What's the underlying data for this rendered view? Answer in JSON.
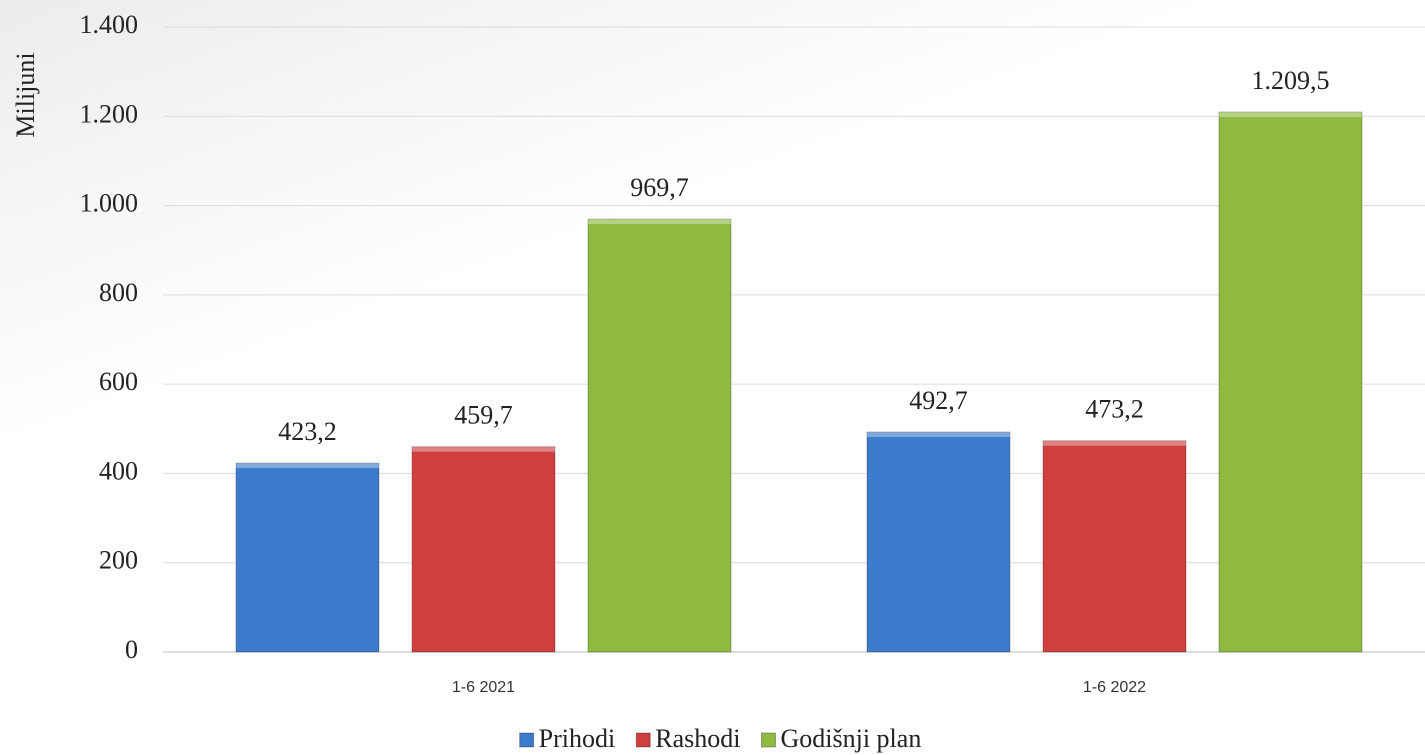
{
  "chart_data": {
    "type": "bar",
    "y_label": "Milijuni",
    "categories": [
      "1-6 2021",
      "1-6 2022"
    ],
    "series": [
      {
        "name": "Prihodi",
        "color": "#3d7ccc",
        "values": [
          423.2,
          492.7
        ],
        "value_labels": [
          "423,2",
          "492,7"
        ]
      },
      {
        "name": "Rashodi",
        "color": "#cf3f3d",
        "values": [
          459.7,
          473.2
        ],
        "value_labels": [
          "459,7",
          "473,2"
        ]
      },
      {
        "name": "Godišnji plan",
        "color": "#8dba3f",
        "values": [
          969.7,
          1209.5
        ],
        "value_labels": [
          "969,7",
          "1.209,5"
        ]
      }
    ],
    "ylim": [
      0,
      1400
    ],
    "yticks": [
      0,
      200,
      400,
      600,
      800,
      {
        "value": 1000,
        "label": "1.000"
      },
      {
        "value": 1200,
        "label": "1.200"
      },
      {
        "value": 1400,
        "label": "1.400"
      }
    ],
    "grid": true
  }
}
